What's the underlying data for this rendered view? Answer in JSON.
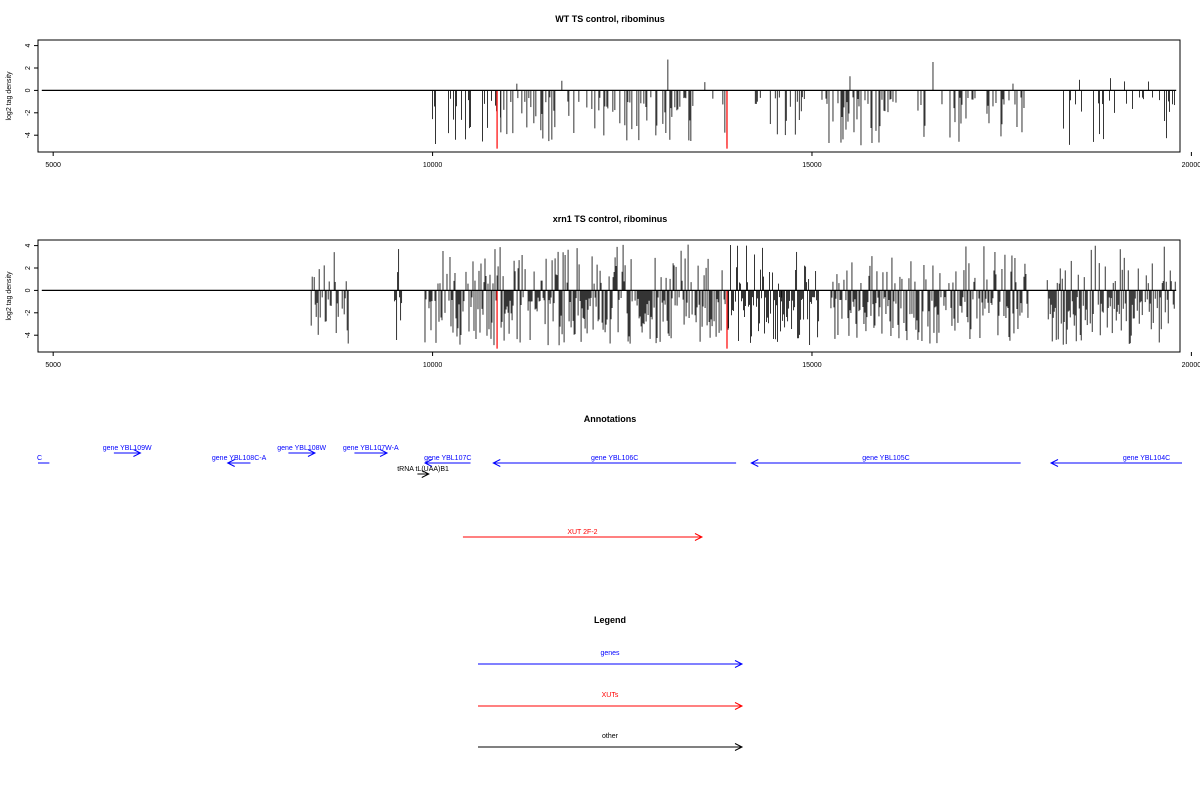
{
  "chart_data": [
    {
      "type": "bar",
      "title": "WT TS control, ribominus",
      "ylabel": "log2 tag density",
      "xlabel": "",
      "xlim": [
        4800,
        19850
      ],
      "ylim": [
        -5.5,
        4.5
      ],
      "xticks": [
        5000,
        10000,
        15000,
        20000
      ],
      "yticks": [
        -4,
        -2,
        0,
        2,
        4
      ],
      "baseline": {
        "x": [
          4850,
          19800
        ],
        "y": 0
      },
      "markers": [
        {
          "x": 10850,
          "y": -5.2
        },
        {
          "x": 13880,
          "y": -5.2
        }
      ],
      "seed": 7,
      "density": 0.62,
      "pos_prob": 0.05,
      "regions": [
        [
          10000,
          10900
        ],
        [
          10900,
          13900
        ],
        [
          14200,
          14900
        ],
        [
          15000,
          17800
        ],
        [
          18300,
          19800
        ]
      ]
    },
    {
      "type": "bar",
      "title": "xrn1 TS control, ribominus",
      "ylabel": "log2 tag density",
      "xlabel": "",
      "xlim": [
        4800,
        19850
      ],
      "ylim": [
        -5.5,
        4.5
      ],
      "xticks": [
        5000,
        10000,
        15000,
        20000
      ],
      "yticks": [
        -4,
        -2,
        0,
        2,
        4
      ],
      "baseline": {
        "x": [
          4850,
          19800
        ],
        "y": 0
      },
      "markers": [
        {
          "x": 10850,
          "y": -5.2
        },
        {
          "x": 13880,
          "y": -5.2
        }
      ],
      "seed": 13,
      "density": 1.9,
      "pos_prob": 0.3,
      "regions": [
        [
          8400,
          8900
        ],
        [
          9500,
          9600
        ],
        [
          9900,
          10850
        ],
        [
          10850,
          13900
        ],
        [
          13900,
          14600
        ],
        [
          14600,
          15100
        ],
        [
          15250,
          17850
        ],
        [
          18100,
          19800
        ]
      ]
    }
  ],
  "annotations": {
    "title": "Annotations",
    "features": [
      {
        "label": "gene YBL109W",
        "type": "gene",
        "strand": "+",
        "start": 5800,
        "end": 6150,
        "row": 0
      },
      {
        "label": "gene YBL108W",
        "type": "gene",
        "strand": "+",
        "start": 8100,
        "end": 8450,
        "row": 0
      },
      {
        "label": "gene YBL107W-A",
        "type": "gene",
        "strand": "+",
        "start": 8970,
        "end": 9400,
        "row": 0
      },
      {
        "label": "C",
        "type": "gene",
        "strand": "-",
        "start": 4200,
        "end": 4950,
        "row": 1
      },
      {
        "label": "gene YBL108C-A",
        "type": "gene",
        "strand": "-",
        "start": 7300,
        "end": 7600,
        "row": 1
      },
      {
        "label": "gene YBL107C",
        "type": "gene",
        "strand": "-",
        "start": 9900,
        "end": 10500,
        "row": 1
      },
      {
        "label": "gene YBL106C",
        "type": "gene",
        "strand": "-",
        "start": 10800,
        "end": 14000,
        "row": 1
      },
      {
        "label": "gene YBL105C",
        "type": "gene",
        "strand": "-",
        "start": 14200,
        "end": 17750,
        "row": 1
      },
      {
        "label": "gene YBL104C",
        "type": "gene",
        "strand": "-",
        "start": 18150,
        "end": 20500,
        "row": 1
      },
      {
        "label": "tRNA tL(UAA)B1",
        "type": "other",
        "strand": "+",
        "start": 9800,
        "end": 9950,
        "row": 2
      },
      {
        "label": "XUT 2F-2",
        "type": "xut",
        "strand": "+",
        "start": 10400,
        "end": 13550,
        "row": 3
      }
    ]
  },
  "legend": {
    "title": "Legend",
    "items": [
      {
        "label": "genes",
        "color": "#0000ff"
      },
      {
        "label": "XUTs",
        "color": "#ff0000"
      },
      {
        "label": "other",
        "color": "#000000"
      }
    ]
  },
  "colors": {
    "gene": "#0000ff",
    "xut": "#ff0000",
    "other": "#000000",
    "marker": "#ff0000",
    "bar": "#000000"
  }
}
